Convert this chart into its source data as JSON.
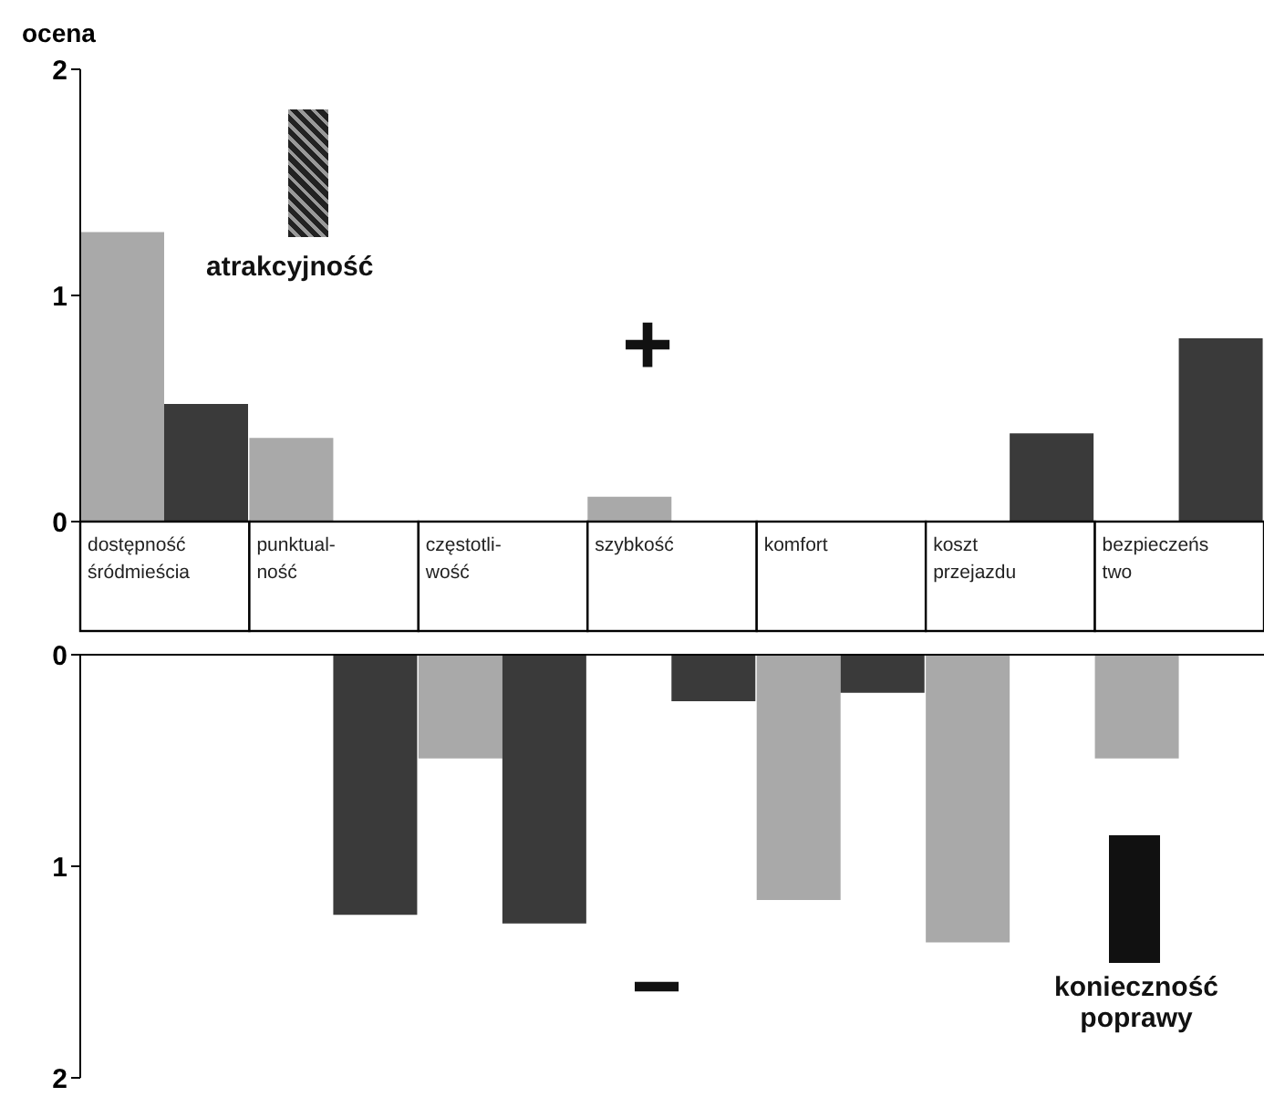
{
  "chart_data": [
    {
      "type": "bar",
      "ylabel": "ocena",
      "categories": [
        "dostępność śródmieścia",
        "punktual-ność",
        "częstotli-wość",
        "szybkość",
        "komfort",
        "koszt przejazdu",
        "bezpieczeństwo"
      ],
      "ylim": [
        0,
        2
      ],
      "yticks": [
        0,
        1,
        2
      ],
      "grid": false,
      "legend": false,
      "annotations": [
        "atrakcyjność",
        "+"
      ],
      "series": [
        {
          "color": "#a9a9a9",
          "values": [
            1.28,
            0.37,
            null,
            0.11,
            null,
            null,
            null
          ]
        },
        {
          "color": "#3a3a3a",
          "values": [
            0.52,
            null,
            null,
            null,
            null,
            0.39,
            0.81
          ]
        }
      ]
    },
    {
      "type": "bar",
      "categories": [
        "dostępność śródmieścia",
        "punktual-ność",
        "częstotli-wość",
        "szybkość",
        "komfort",
        "koszt przejazdu",
        "bezpieczeństwo"
      ],
      "ylim": [
        2,
        0
      ],
      "yticks": [
        0,
        1,
        2
      ],
      "grid": false,
      "legend": false,
      "tick_labels": "y",
      "annotations": [
        "−",
        "konieczność poprawy"
      ],
      "series": [
        {
          "color": "#a9a9a9",
          "values": [
            null,
            null,
            0.49,
            null,
            1.16,
            1.36,
            0.49
          ]
        },
        {
          "color": "#3a3a3a",
          "values": [
            null,
            1.23,
            1.27,
            0.22,
            0.18,
            null,
            null
          ]
        }
      ]
    }
  ]
}
